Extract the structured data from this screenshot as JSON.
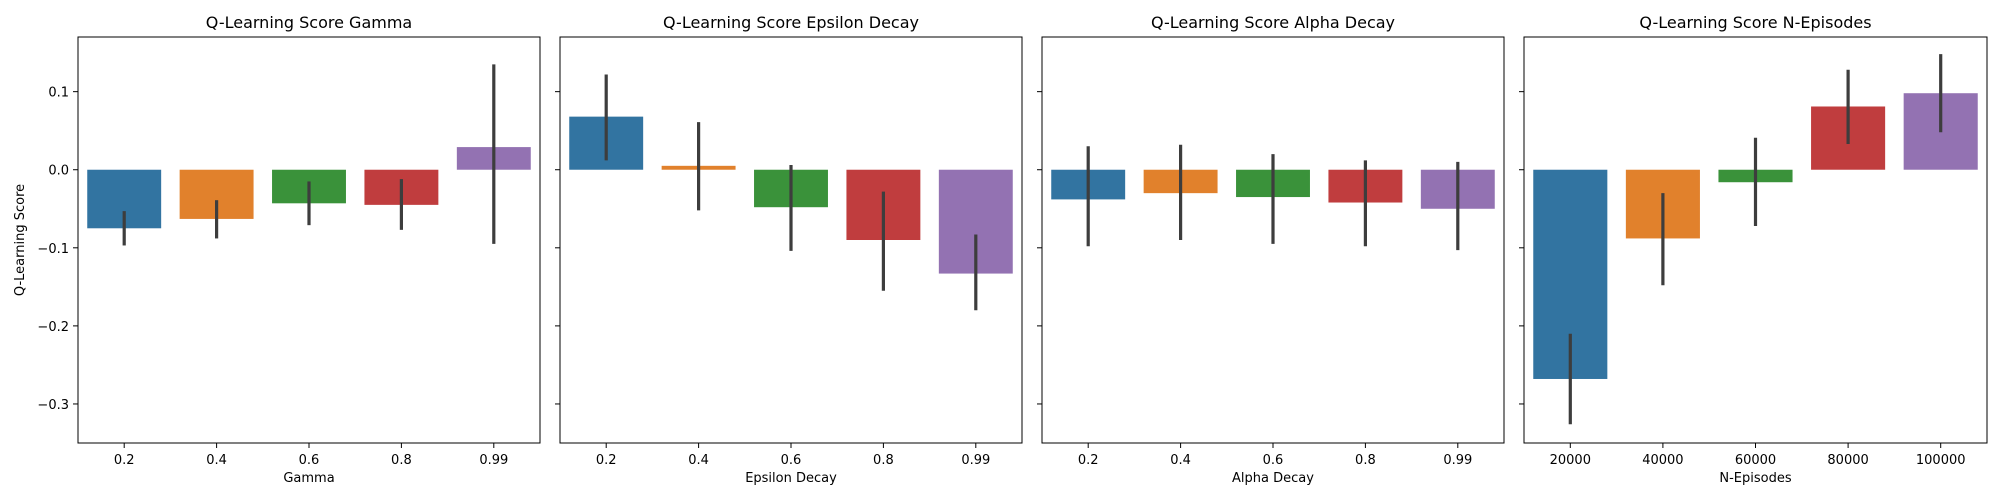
{
  "chart_data": [
    {
      "type": "bar",
      "title": "Q-Learning Score Gamma",
      "xlabel": "Gamma",
      "ylabel": "Q-Learning Score",
      "categories": [
        "0.2",
        "0.4",
        "0.6",
        "0.8",
        "0.99"
      ],
      "values": [
        -0.075,
        -0.063,
        -0.043,
        -0.045,
        0.029
      ],
      "error_low": [
        -0.097,
        -0.088,
        -0.071,
        -0.077,
        -0.095
      ],
      "error_high": [
        -0.053,
        -0.039,
        -0.015,
        -0.012,
        0.135
      ],
      "colors": [
        "#3274a1",
        "#e1812c",
        "#3a923a",
        "#c03d3e",
        "#9372b2"
      ],
      "ylim": [
        -0.35,
        0.17
      ],
      "yticks": [
        -0.3,
        -0.2,
        -0.1,
        0.0,
        0.1
      ]
    },
    {
      "type": "bar",
      "title": "Q-Learning Score Epsilon Decay",
      "xlabel": "Epsilon Decay",
      "ylabel": "",
      "categories": [
        "0.2",
        "0.4",
        "0.6",
        "0.8",
        "0.99"
      ],
      "values": [
        0.068,
        0.005,
        -0.048,
        -0.09,
        -0.133
      ],
      "error_low": [
        0.012,
        -0.052,
        -0.104,
        -0.155,
        -0.18
      ],
      "error_high": [
        0.122,
        0.061,
        0.006,
        -0.028,
        -0.083
      ],
      "colors": [
        "#3274a1",
        "#e1812c",
        "#3a923a",
        "#c03d3e",
        "#9372b2"
      ],
      "ylim": [
        -0.35,
        0.17
      ],
      "yticks": [
        -0.3,
        -0.2,
        -0.1,
        0.0,
        0.1
      ]
    },
    {
      "type": "bar",
      "title": "Q-Learning Score Alpha Decay",
      "xlabel": "Alpha Decay",
      "ylabel": "",
      "categories": [
        "0.2",
        "0.4",
        "0.6",
        "0.8",
        "0.99"
      ],
      "values": [
        -0.038,
        -0.03,
        -0.035,
        -0.042,
        -0.05
      ],
      "error_low": [
        -0.098,
        -0.09,
        -0.095,
        -0.098,
        -0.103
      ],
      "error_high": [
        0.03,
        0.032,
        0.02,
        0.012,
        0.01
      ],
      "colors": [
        "#3274a1",
        "#e1812c",
        "#3a923a",
        "#c03d3e",
        "#9372b2"
      ],
      "ylim": [
        -0.35,
        0.17
      ],
      "yticks": [
        -0.3,
        -0.2,
        -0.1,
        0.0,
        0.1
      ]
    },
    {
      "type": "bar",
      "title": "Q-Learning Score N-Episodes",
      "xlabel": "N-Episodes",
      "ylabel": "",
      "categories": [
        "20000",
        "40000",
        "60000",
        "80000",
        "100000"
      ],
      "values": [
        -0.268,
        -0.088,
        -0.016,
        0.081,
        0.098
      ],
      "error_low": [
        -0.326,
        -0.148,
        -0.072,
        0.033,
        0.048
      ],
      "error_high": [
        -0.21,
        -0.03,
        0.041,
        0.128,
        0.148
      ],
      "colors": [
        "#3274a1",
        "#e1812c",
        "#3a923a",
        "#c03d3e",
        "#9372b2"
      ],
      "ylim": [
        -0.35,
        0.17
      ],
      "yticks": [
        -0.3,
        -0.2,
        -0.1,
        0.0,
        0.1
      ]
    }
  ]
}
